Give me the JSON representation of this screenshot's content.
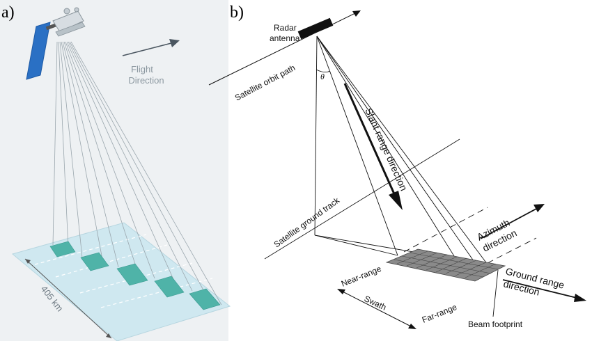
{
  "panel_a": {
    "label": "a)",
    "flight_direction_line1": "Flight",
    "flight_direction_line2": "Direction",
    "width_label": "405 km",
    "colors": {
      "background": "#eef1f3",
      "solar_panel": "#2a70c4",
      "swath": "#cfe8f0",
      "beam_patch": "#4fb3a8",
      "label_gray": "#8c98a0"
    }
  },
  "panel_b": {
    "label": "b)",
    "radar_antenna_line1": "Radar",
    "radar_antenna_line2": "antenna",
    "satellite_orbit_path": "Satellite orbit path",
    "theta": "θ",
    "slant_range_direction": "Slant range direction",
    "satellite_ground_track": "Satellite ground track",
    "azimuth_direction_line1": "Azimuth",
    "azimuth_direction_line2": "direction",
    "ground_range_direction_line1": "Ground range",
    "ground_range_direction_line2": "direction",
    "near_range": "Near-range",
    "far_range": "Far-range",
    "swath": "Swath",
    "beam_footprint": "Beam footprint",
    "colors": {
      "line": "#111111",
      "footprint": "#777777"
    }
  }
}
